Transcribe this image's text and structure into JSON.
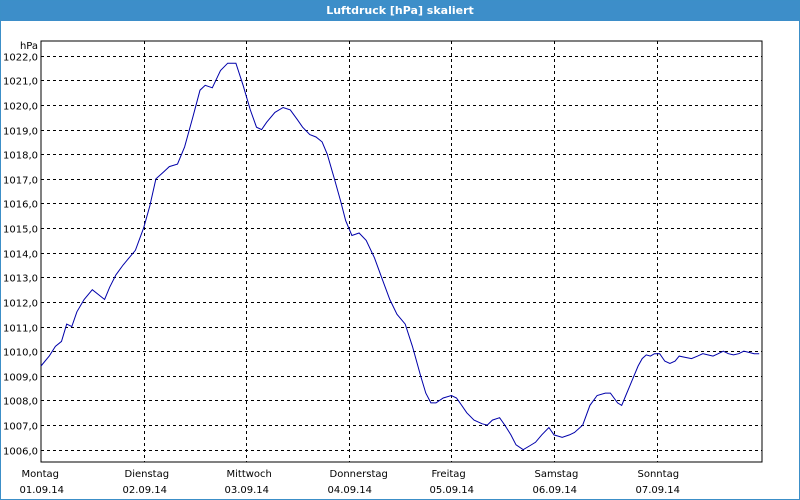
{
  "window": {
    "title": "Luftdruck [hPa] skaliert"
  },
  "chart_data": {
    "type": "line",
    "title": "Luftdruck [hPa] skaliert",
    "ylabel": "hPa",
    "xlabel": "",
    "ylim": [
      1005.5,
      1022.6
    ],
    "xlim": [
      0,
      7
    ],
    "grid": true,
    "y_ticks": [
      "1006,0",
      "1007,0",
      "1008,0",
      "1009,0",
      "1010,0",
      "1011,0",
      "1012,0",
      "1013,0",
      "1014,0",
      "1015,0",
      "1016,0",
      "1017,0",
      "1018,0",
      "1019,0",
      "1020,0",
      "1021,0",
      "1022,0"
    ],
    "x_ticks": [
      {
        "day": "Montag",
        "date": "01.09.14"
      },
      {
        "day": "Dienstag",
        "date": "02.09.14"
      },
      {
        "day": "Mittwoch",
        "date": "03.09.14"
      },
      {
        "day": "Donnerstag",
        "date": "04.09.14"
      },
      {
        "day": "Freitag",
        "date": "05.09.14"
      },
      {
        "day": "Samstag",
        "date": "06.09.14"
      },
      {
        "day": "Sonntag",
        "date": "07.09.14"
      }
    ],
    "series": [
      {
        "color": "#0000aa",
        "x": [
          0,
          0.08,
          0.14,
          0.2,
          0.25,
          0.3,
          0.35,
          0.42,
          0.5,
          0.56,
          0.62,
          0.67,
          0.73,
          0.8,
          0.86,
          0.92,
          1.0,
          1.06,
          1.12,
          1.2,
          1.25,
          1.33,
          1.4,
          1.48,
          1.55,
          1.6,
          1.67,
          1.75,
          1.82,
          1.9,
          1.97,
          2.04,
          2.1,
          2.15,
          2.2,
          2.28,
          2.36,
          2.43,
          2.5,
          2.55,
          2.62,
          2.68,
          2.74,
          2.79,
          2.86,
          2.92,
          2.97,
          3.03,
          3.1,
          3.17,
          3.25,
          3.32,
          3.4,
          3.47,
          3.55,
          3.62,
          3.7,
          3.75,
          3.8,
          3.85,
          3.92,
          4.0,
          4.05,
          4.1,
          4.15,
          4.22,
          4.3,
          4.35,
          4.4,
          4.47,
          4.52,
          4.58,
          4.63,
          4.7,
          4.76,
          4.82,
          4.88,
          4.95,
          5.0,
          5.08,
          5.15,
          5.2,
          5.28,
          5.35,
          5.42,
          5.5,
          5.55,
          5.62,
          5.66,
          5.7,
          5.74,
          5.78,
          5.82,
          5.86,
          5.9,
          5.94,
          5.98,
          6.03,
          6.08,
          6.13,
          6.18,
          6.22,
          6.28,
          6.34,
          6.4,
          6.45,
          6.5,
          6.55,
          6.6,
          6.65,
          6.7,
          6.75,
          6.8,
          6.85,
          6.9,
          6.95,
          7.0
        ],
        "y": [
          1009.4,
          1009.8,
          1010.2,
          1010.4,
          1011.1,
          1011.0,
          1011.6,
          1012.1,
          1012.5,
          1012.3,
          1012.1,
          1012.6,
          1013.1,
          1013.5,
          1013.8,
          1014.1,
          1015.0,
          1015.9,
          1017.0,
          1017.3,
          1017.5,
          1017.6,
          1018.3,
          1019.5,
          1020.6,
          1020.8,
          1020.7,
          1021.4,
          1021.7,
          1021.7,
          1020.8,
          1019.8,
          1019.1,
          1019.0,
          1019.3,
          1019.7,
          1019.9,
          1019.8,
          1019.4,
          1019.1,
          1018.8,
          1018.7,
          1018.5,
          1018.0,
          1017.0,
          1016.1,
          1015.3,
          1014.7,
          1014.8,
          1014.5,
          1013.8,
          1013.0,
          1012.1,
          1011.5,
          1011.1,
          1010.2,
          1009.0,
          1008.3,
          1007.9,
          1007.9,
          1008.1,
          1008.2,
          1008.1,
          1007.8,
          1007.5,
          1007.2,
          1007.05,
          1007.0,
          1007.2,
          1007.3,
          1007.0,
          1006.6,
          1006.2,
          1006.0,
          1006.15,
          1006.3,
          1006.6,
          1006.9,
          1006.6,
          1006.5,
          1006.6,
          1006.7,
          1007.0,
          1007.8,
          1008.2,
          1008.3,
          1008.3,
          1007.9,
          1007.8,
          1008.2,
          1008.6,
          1009.0,
          1009.4,
          1009.7,
          1009.85,
          1009.8,
          1009.9,
          1009.9,
          1009.6,
          1009.5,
          1009.6,
          1009.8,
          1009.75,
          1009.7,
          1009.8,
          1009.9,
          1009.85,
          1009.8,
          1009.9,
          1010.0,
          1009.9,
          1009.85,
          1009.9,
          1010.0,
          1009.95,
          1009.9,
          1009.9
        ]
      }
    ]
  }
}
